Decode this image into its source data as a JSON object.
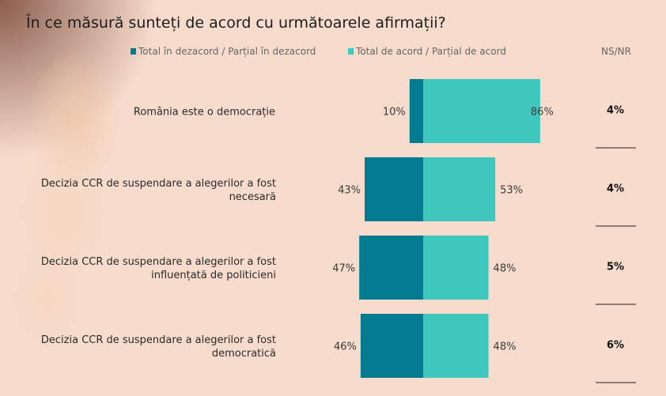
{
  "title": "În ce măsură sunteți de acord cu următoarele  afirmații?",
  "chart_data": {
    "type": "bar",
    "orientation": "horizontal-diverging",
    "title": "În ce măsură sunteți de acord cu următoarele  afirmații?",
    "categories": [
      [
        "România este o democrație"
      ],
      [
        "Decizia CCR de suspendare a alegerilor a fost",
        "necesară"
      ],
      [
        "Decizia CCR de suspendare a alegerilor a fost",
        "influențată de politicieni"
      ],
      [
        "Decizia CCR de suspendare a alegerilor a fost",
        "democratică"
      ]
    ],
    "series": [
      {
        "name": "Total în dezacord / Parțial în dezacord",
        "color": "#047a91",
        "values": [
          10,
          43,
          47,
          46
        ],
        "labels": [
          "10%",
          "43%",
          "47%",
          "46%"
        ]
      },
      {
        "name": "Total de acord / Parțial de acord",
        "color": "#3ec8bd",
        "values": [
          86,
          53,
          48,
          48
        ],
        "labels": [
          "86%",
          "53%",
          "48%",
          "48%"
        ]
      }
    ],
    "ns_nr": {
      "header": "NS/NR",
      "values": [
        4,
        4,
        5,
        6
      ],
      "labels": [
        "4%",
        "4%",
        "5%",
        "6%"
      ]
    },
    "legend_position": "top",
    "grid": false
  }
}
